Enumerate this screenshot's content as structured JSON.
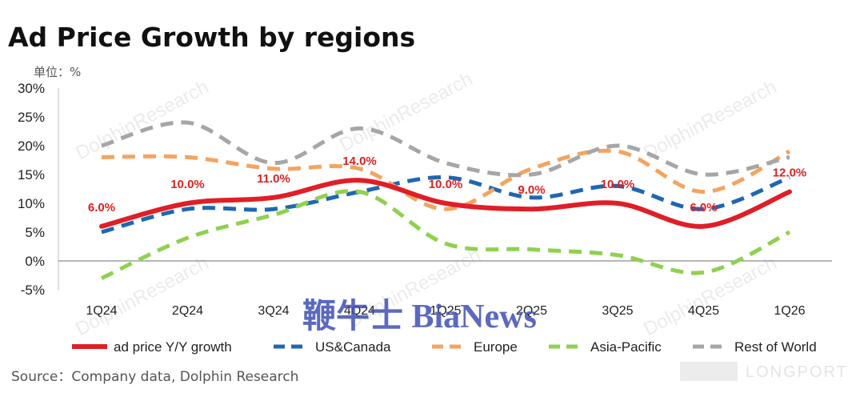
{
  "chart_data": {
    "type": "line",
    "title": "Ad Price Growth by regions",
    "unit_label": "单位：%",
    "categories": [
      "1Q24",
      "2Q24",
      "3Q24",
      "4Q24",
      "1Q25",
      "2Q25",
      "3Q25",
      "4Q25",
      "1Q26"
    ],
    "ylim": [
      -5,
      30
    ],
    "yticks": [
      -5,
      0,
      5,
      10,
      15,
      20,
      25,
      30
    ],
    "ytick_labels": [
      "-5%",
      "0%",
      "5%",
      "10%",
      "15%",
      "20%",
      "25%",
      "30%"
    ],
    "grid": false,
    "legend_position": "bottom",
    "series": [
      {
        "name": "ad price Y/Y growth",
        "color": "#e01e26",
        "style": "solid",
        "values": [
          6,
          10,
          11,
          14,
          10,
          9,
          10,
          6,
          12
        ],
        "data_labels": [
          "6.0%",
          "10.0%",
          "11.0%",
          "14.0%",
          "10.0%",
          "9.0%",
          "10.0%",
          "6.0%",
          "12.0%"
        ]
      },
      {
        "name": "US&Canada",
        "color": "#1f67b1",
        "style": "dashed",
        "values": [
          5,
          9,
          9,
          12,
          14.5,
          11,
          13,
          9,
          14.5
        ]
      },
      {
        "name": "Europe",
        "color": "#f4a460",
        "style": "dashed",
        "values": [
          18,
          18,
          16,
          16,
          9,
          16,
          19,
          12,
          19
        ]
      },
      {
        "name": "Asia-Pacific",
        "color": "#8fd14f",
        "style": "dashed",
        "values": [
          -3,
          4,
          8,
          12,
          3,
          2,
          1,
          -2,
          5
        ]
      },
      {
        "name": "Rest of World",
        "color": "#a6a6a6",
        "style": "dashed",
        "values": [
          20,
          24,
          17,
          23,
          17,
          15,
          20,
          15,
          18
        ]
      }
    ]
  },
  "source": "Source：Company data, Dolphin Research",
  "watermark": "DolphinResearch",
  "brand_overlay": "鞭牛士 BiaNews",
  "corner_logo": "LONGPORT"
}
